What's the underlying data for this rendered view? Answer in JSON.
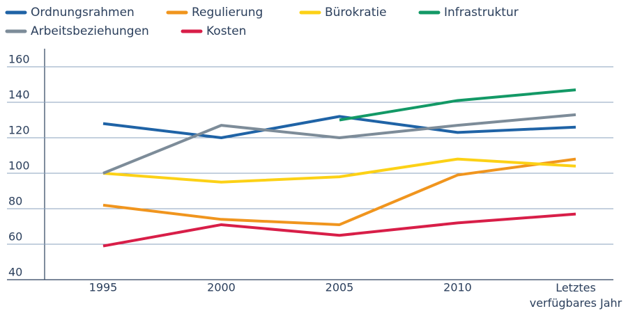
{
  "chart_data": {
    "type": "line",
    "categories": [
      "1995",
      "2000",
      "2005",
      "2010",
      "Letztes verfügbares Jahr"
    ],
    "series": [
      {
        "name": "Ordnungsrahmen",
        "color": "#1f63a6",
        "values": [
          128,
          120,
          132,
          123,
          126
        ]
      },
      {
        "name": "Regulierung",
        "color": "#f0951e",
        "values": [
          82,
          74,
          71,
          99,
          108
        ]
      },
      {
        "name": "Bürokratie",
        "color": "#fcd116",
        "values": [
          100,
          95,
          98,
          108,
          104
        ]
      },
      {
        "name": "Infrastruktur",
        "color": "#139966",
        "values": [
          null,
          null,
          130,
          141,
          147
        ]
      },
      {
        "name": "Arbeitsbeziehungen",
        "color": "#7d8c99",
        "values": [
          100,
          127,
          120,
          127,
          133
        ]
      },
      {
        "name": "Kosten",
        "color": "#d81e48",
        "values": [
          59,
          71,
          65,
          72,
          77
        ]
      }
    ],
    "ylim": [
      40,
      160
    ],
    "yticks": [
      40,
      60,
      80,
      100,
      120,
      140,
      160
    ],
    "grid": true
  }
}
